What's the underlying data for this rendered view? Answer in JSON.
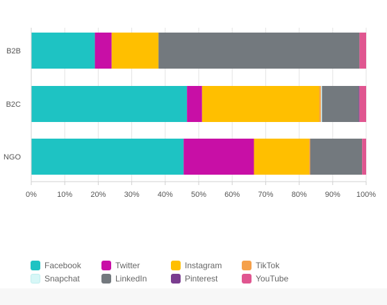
{
  "chart_data": {
    "type": "bar",
    "orientation": "horizontal",
    "stacked": true,
    "categories": [
      "B2B",
      "B2C",
      "NGO"
    ],
    "series": [
      {
        "name": "Facebook",
        "color": "#1ec3c3",
        "values": [
          19,
          46.5,
          45.5
        ]
      },
      {
        "name": "Twitter",
        "color": "#c80fa6",
        "values": [
          5,
          4.5,
          21
        ]
      },
      {
        "name": "Instagram",
        "color": "#ffbf00",
        "values": [
          14,
          35,
          16.5
        ]
      },
      {
        "name": "TikTok",
        "color": "#f5a04a",
        "values": [
          0,
          0.5,
          0.3
        ]
      },
      {
        "name": "Snapchat",
        "color": "#d7f7f7",
        "values": [
          0,
          0.3,
          0
        ]
      },
      {
        "name": "LinkedIn",
        "color": "#73797e",
        "values": [
          60,
          11,
          15.5
        ]
      },
      {
        "name": "Pinterest",
        "color": "#7a3d8f",
        "values": [
          0,
          0.2,
          0
        ]
      },
      {
        "name": "YouTube",
        "color": "#e05690",
        "values": [
          2,
          2,
          1.2
        ]
      }
    ],
    "x_ticks": [
      "0%",
      "10%",
      "20%",
      "30%",
      "40%",
      "50%",
      "60%",
      "70%",
      "80%",
      "90%",
      "100%"
    ],
    "xlim": [
      0,
      100
    ],
    "grid": true,
    "legend_position": "bottom"
  }
}
